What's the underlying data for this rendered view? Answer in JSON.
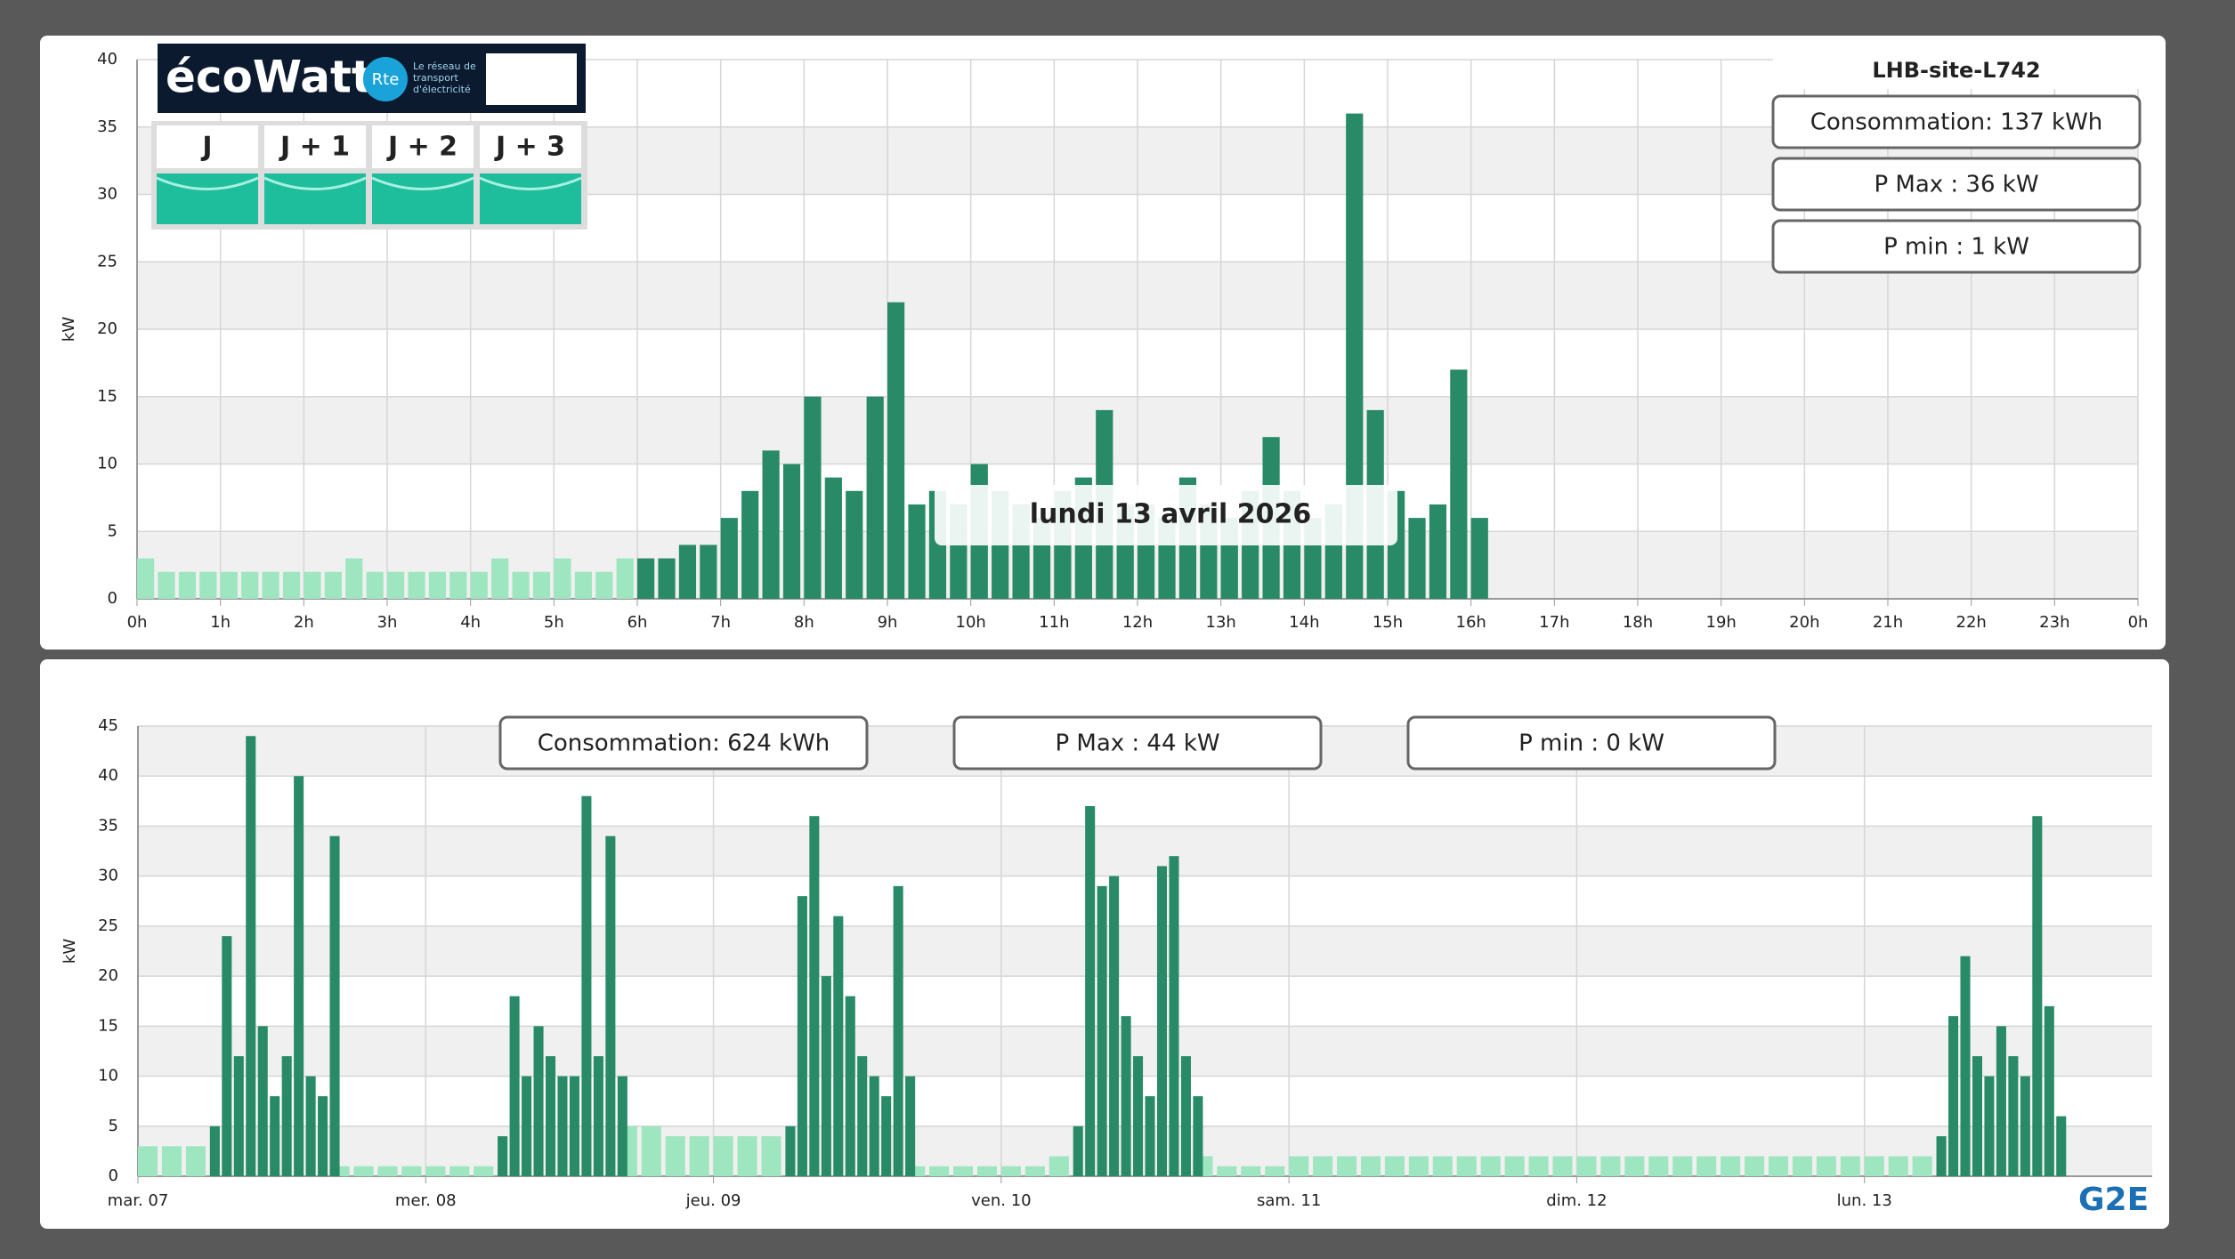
{
  "chart_data": [
    {
      "type": "bar",
      "site": "LHB-site-L742",
      "date_label": "lundi 13 avril 2026",
      "stats": [
        "Consommation: 137 kWh",
        "P Max :  36 kW",
        "P min : 1 kW"
      ],
      "y_label": "kW",
      "grid": true,
      "xlim": [
        0,
        24
      ],
      "xticks": [
        {
          "value": 0,
          "label": "0h"
        },
        {
          "value": 1,
          "label": "1h"
        },
        {
          "value": 2,
          "label": "2h"
        },
        {
          "value": 3,
          "label": "3h"
        },
        {
          "value": 4,
          "label": "4h"
        },
        {
          "value": 5,
          "label": "5h"
        },
        {
          "value": 6,
          "label": "6h"
        },
        {
          "value": 7,
          "label": "7h"
        },
        {
          "value": 8,
          "label": "8h"
        },
        {
          "value": 9,
          "label": "9h"
        },
        {
          "value": 10,
          "label": "10h"
        },
        {
          "value": 11,
          "label": "11h"
        },
        {
          "value": 12,
          "label": "12h"
        },
        {
          "value": 13,
          "label": "13h"
        },
        {
          "value": 14,
          "label": "14h"
        },
        {
          "value": 15,
          "label": "15h"
        },
        {
          "value": 16,
          "label": "16h"
        },
        {
          "value": 17,
          "label": "17h"
        },
        {
          "value": 18,
          "label": "18h"
        },
        {
          "value": 19,
          "label": "19h"
        },
        {
          "value": 20,
          "label": "20h"
        },
        {
          "value": 21,
          "label": "21h"
        },
        {
          "value": 22,
          "label": "22h"
        },
        {
          "value": 23,
          "label": "23h"
        },
        {
          "value": 24,
          "label": "0h"
        }
      ],
      "ylim": [
        0,
        40
      ],
      "yticks": [
        0,
        5,
        10,
        15,
        20,
        25,
        30,
        35,
        40
      ],
      "series": [
        {
          "color": "#9ee6c0",
          "x": [
            0,
            0.25,
            0.5,
            0.75,
            1,
            1.25,
            1.5,
            1.75,
            2,
            2.25,
            2.5,
            2.75,
            3,
            3.25,
            3.5,
            3.75,
            4,
            4.25,
            4.5,
            4.75,
            5,
            5.25,
            5.5,
            5.75
          ],
          "values": [
            3,
            2,
            2,
            2,
            2,
            2,
            2,
            2,
            2,
            2,
            3,
            2,
            2,
            2,
            2,
            2,
            2,
            3,
            2,
            2,
            3,
            2,
            2,
            3
          ]
        },
        {
          "color": "#288a66",
          "x": [
            6,
            6.25,
            6.5,
            6.75,
            7,
            7.25,
            7.5,
            7.75,
            8,
            8.25,
            8.5,
            8.75,
            9,
            9.25,
            9.5,
            9.75,
            10,
            10.25,
            10.5,
            10.75,
            11,
            11.25,
            11.5,
            11.75,
            12,
            12.25,
            12.5,
            12.75,
            13,
            13.25,
            13.5,
            13.75,
            14,
            14.25,
            14.5,
            14.75,
            15,
            15.25,
            15.5,
            15.75,
            16
          ],
          "values": [
            3,
            3,
            4,
            4,
            6,
            8,
            11,
            10,
            15,
            9,
            8,
            15,
            22,
            7,
            8,
            7,
            10,
            8,
            7,
            6,
            8,
            9,
            14,
            7,
            7,
            6,
            9,
            7,
            6,
            8,
            12,
            8,
            6,
            7,
            36,
            14,
            8,
            6,
            7,
            17,
            6
          ]
        }
      ]
    },
    {
      "type": "bar",
      "stats": [
        "Consommation: 624 kWh",
        "P Max :  44 kW",
        "P min : 0 kW"
      ],
      "y_label": "kW",
      "grid": true,
      "xlim": [
        0,
        168
      ],
      "xticks": [
        {
          "value": 0,
          "label": "mar. 07"
        },
        {
          "value": 24,
          "label": "mer. 08"
        },
        {
          "value": 48,
          "label": "jeu. 09"
        },
        {
          "value": 72,
          "label": "ven. 10"
        },
        {
          "value": 96,
          "label": "sam. 11"
        },
        {
          "value": 120,
          "label": "dim. 12"
        },
        {
          "value": 144,
          "label": "lun. 13"
        }
      ],
      "ylim": [
        0,
        45
      ],
      "yticks": [
        0,
        5,
        10,
        15,
        20,
        25,
        30,
        35,
        40,
        45
      ],
      "series": [
        {
          "color": "#9ee6c0",
          "x": [
            0,
            2,
            4,
            16,
            18,
            20,
            22,
            24,
            26,
            28,
            40,
            42,
            44,
            46,
            48,
            50,
            52,
            64,
            66,
            68,
            70,
            72,
            74,
            76,
            88,
            90,
            92,
            94,
            96,
            98,
            100,
            102,
            104,
            106,
            108,
            110,
            112,
            114,
            116,
            118,
            120,
            122,
            124,
            126,
            128,
            130,
            132,
            134,
            136,
            138,
            140,
            142,
            144,
            146,
            148
          ],
          "values": [
            3,
            3,
            3,
            1,
            1,
            1,
            1,
            1,
            1,
            1,
            5,
            5,
            4,
            4,
            4,
            4,
            4,
            1,
            1,
            1,
            1,
            1,
            1,
            2,
            2,
            1,
            1,
            1,
            2,
            2,
            2,
            2,
            2,
            2,
            2,
            2,
            2,
            2,
            2,
            2,
            2,
            2,
            2,
            2,
            2,
            2,
            2,
            2,
            2,
            2,
            2,
            2,
            2,
            2,
            2
          ]
        },
        {
          "color": "#288a66",
          "x": [
            6,
            7,
            8,
            9,
            10,
            11,
            12,
            13,
            14,
            15,
            16,
            30,
            31,
            32,
            33,
            34,
            35,
            36,
            37,
            38,
            39,
            40,
            54,
            55,
            56,
            57,
            58,
            59,
            60,
            61,
            62,
            63,
            64,
            78,
            79,
            80,
            81,
            82,
            83,
            84,
            85,
            86,
            87,
            88,
            150,
            151,
            152,
            153,
            154,
            155,
            156,
            157,
            158,
            159,
            160
          ],
          "values": [
            5,
            24,
            12,
            44,
            15,
            8,
            12,
            40,
            10,
            8,
            34,
            4,
            18,
            10,
            15,
            12,
            10,
            10,
            38,
            12,
            34,
            10,
            5,
            28,
            36,
            20,
            26,
            18,
            12,
            10,
            8,
            29,
            10,
            5,
            37,
            29,
            30,
            16,
            12,
            8,
            31,
            32,
            12,
            8,
            4,
            16,
            22,
            12,
            10,
            15,
            12,
            10,
            36,
            17,
            6
          ]
        }
      ]
    }
  ],
  "ecowatt": {
    "logo": "écoWatt",
    "rte": "Rte",
    "tagline": "Le réseau de transport d'électricité",
    "days": [
      "J",
      "J + 1",
      "J + 2",
      "J + 3"
    ]
  },
  "brand": "G2E"
}
